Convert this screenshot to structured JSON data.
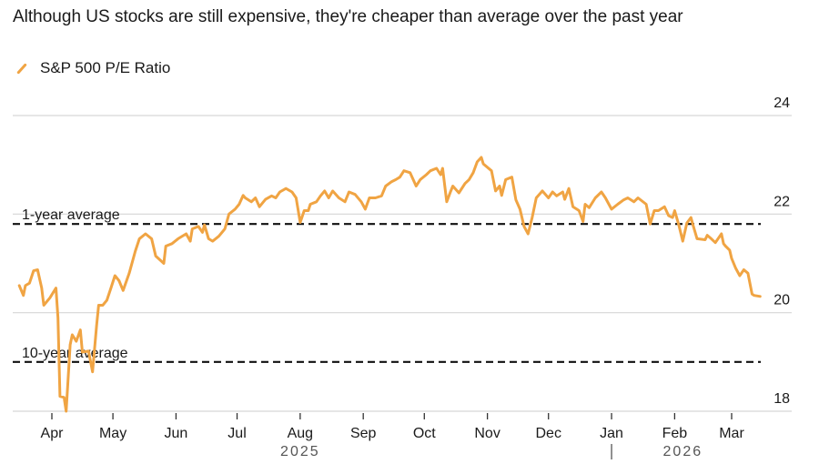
{
  "title": "Although US stocks are still expensive, they're cheaper than average over the past year",
  "chart_data": {
    "type": "line",
    "title": "Although US stocks are still expensive, they're cheaper than average over the past year",
    "xlabel": "",
    "ylabel": "",
    "x_unit": "days since 2025-04-01",
    "xlim": [
      -16,
      348
    ],
    "ylim": [
      17.7,
      24.5
    ],
    "y_ticks": [
      18,
      20,
      22,
      24
    ],
    "y_axis_side": "right",
    "grid": true,
    "legend": {
      "position": "top-left",
      "entries": [
        {
          "name": "S&P 500 P/E Ratio",
          "color": "#f0a443"
        }
      ]
    },
    "x_ticks": [
      {
        "day": 0,
        "label": "Apr"
      },
      {
        "day": 30,
        "label": "May"
      },
      {
        "day": 61,
        "label": "Jun"
      },
      {
        "day": 91,
        "label": "Jul"
      },
      {
        "day": 122,
        "label": "Aug"
      },
      {
        "day": 153,
        "label": "Sep"
      },
      {
        "day": 183,
        "label": "Oct"
      },
      {
        "day": 214,
        "label": "Nov"
      },
      {
        "day": 244,
        "label": "Dec"
      },
      {
        "day": 275,
        "label": "Jan"
      },
      {
        "day": 306,
        "label": "Feb"
      },
      {
        "day": 334,
        "label": "Mar"
      }
    ],
    "year_labels": [
      {
        "day": 122,
        "label": "2025"
      },
      {
        "day": 310,
        "label": "2026"
      }
    ],
    "year_divider_day": 275,
    "reference_lines": [
      {
        "name": "1-year average",
        "value": 21.8
      },
      {
        "name": "10-year average",
        "value": 19.0
      }
    ],
    "series": [
      {
        "name": "S&P 500 P/E Ratio",
        "color": "#f0a443",
        "points": [
          [
            -16,
            20.55
          ],
          [
            -14,
            20.35
          ],
          [
            -13,
            20.55
          ],
          [
            -11,
            20.6
          ],
          [
            -9,
            20.85
          ],
          [
            -7,
            20.87
          ],
          [
            -5,
            20.5
          ],
          [
            -4,
            20.15
          ],
          [
            -1,
            20.3
          ],
          [
            2,
            20.5
          ],
          [
            3,
            19.9
          ],
          [
            4,
            18.3
          ],
          [
            6,
            18.28
          ],
          [
            7,
            18.0
          ],
          [
            9,
            19.35
          ],
          [
            10,
            19.55
          ],
          [
            12,
            19.42
          ],
          [
            14,
            19.65
          ],
          [
            15,
            19.2
          ],
          [
            18,
            19.22
          ],
          [
            20,
            18.8
          ],
          [
            22,
            19.75
          ],
          [
            23,
            20.15
          ],
          [
            25,
            20.15
          ],
          [
            27,
            20.25
          ],
          [
            29,
            20.5
          ],
          [
            31,
            20.75
          ],
          [
            33,
            20.65
          ],
          [
            35,
            20.45
          ],
          [
            38,
            20.8
          ],
          [
            41,
            21.25
          ],
          [
            43,
            21.5
          ],
          [
            46,
            21.6
          ],
          [
            49,
            21.5
          ],
          [
            51,
            21.15
          ],
          [
            55,
            21.0
          ],
          [
            56,
            21.35
          ],
          [
            59,
            21.4
          ],
          [
            62,
            21.5
          ],
          [
            66,
            21.6
          ],
          [
            68,
            21.45
          ],
          [
            69,
            21.7
          ],
          [
            72,
            21.75
          ],
          [
            74,
            21.63
          ],
          [
            75,
            21.78
          ],
          [
            77,
            21.5
          ],
          [
            79,
            21.45
          ],
          [
            82,
            21.55
          ],
          [
            85,
            21.7
          ],
          [
            87,
            22.0
          ],
          [
            90,
            22.1
          ],
          [
            92,
            22.2
          ],
          [
            94,
            22.38
          ],
          [
            95,
            22.33
          ],
          [
            98,
            22.25
          ],
          [
            100,
            22.33
          ],
          [
            102,
            22.15
          ],
          [
            105,
            22.3
          ],
          [
            108,
            22.37
          ],
          [
            110,
            22.33
          ],
          [
            112,
            22.45
          ],
          [
            115,
            22.52
          ],
          [
            118,
            22.45
          ],
          [
            120,
            22.33
          ],
          [
            122,
            21.83
          ],
          [
            124,
            22.07
          ],
          [
            126,
            22.07
          ],
          [
            127,
            22.2
          ],
          [
            130,
            22.25
          ],
          [
            132,
            22.37
          ],
          [
            134,
            22.47
          ],
          [
            136,
            22.33
          ],
          [
            138,
            22.47
          ],
          [
            141,
            22.33
          ],
          [
            144,
            22.25
          ],
          [
            146,
            22.45
          ],
          [
            149,
            22.4
          ],
          [
            152,
            22.25
          ],
          [
            154,
            22.1
          ],
          [
            156,
            22.33
          ],
          [
            159,
            22.33
          ],
          [
            162,
            22.37
          ],
          [
            164,
            22.57
          ],
          [
            167,
            22.66
          ],
          [
            169,
            22.7
          ],
          [
            171,
            22.75
          ],
          [
            173,
            22.88
          ],
          [
            176,
            22.84
          ],
          [
            179,
            22.57
          ],
          [
            181,
            22.7
          ],
          [
            184,
            22.8
          ],
          [
            186,
            22.88
          ],
          [
            189,
            22.93
          ],
          [
            191,
            22.8
          ],
          [
            192,
            22.93
          ],
          [
            194,
            22.25
          ],
          [
            196,
            22.47
          ],
          [
            197,
            22.57
          ],
          [
            200,
            22.43
          ],
          [
            203,
            22.62
          ],
          [
            205,
            22.7
          ],
          [
            207,
            22.84
          ],
          [
            209,
            23.06
          ],
          [
            211,
            23.15
          ],
          [
            212,
            23.02
          ],
          [
            216,
            22.88
          ],
          [
            218,
            22.47
          ],
          [
            220,
            22.57
          ],
          [
            221,
            22.38
          ],
          [
            223,
            22.7
          ],
          [
            226,
            22.75
          ],
          [
            228,
            22.29
          ],
          [
            230,
            22.1
          ],
          [
            232,
            21.75
          ],
          [
            234,
            21.6
          ],
          [
            236,
            21.93
          ],
          [
            238,
            22.33
          ],
          [
            241,
            22.47
          ],
          [
            244,
            22.33
          ],
          [
            246,
            22.45
          ],
          [
            248,
            22.37
          ],
          [
            251,
            22.45
          ],
          [
            252,
            22.3
          ],
          [
            254,
            22.52
          ],
          [
            256,
            22.15
          ],
          [
            259,
            22.07
          ],
          [
            261,
            21.85
          ],
          [
            262,
            22.2
          ],
          [
            264,
            22.13
          ],
          [
            267,
            22.33
          ],
          [
            270,
            22.45
          ],
          [
            272,
            22.33
          ],
          [
            275,
            22.1
          ],
          [
            278,
            22.2
          ],
          [
            281,
            22.29
          ],
          [
            283,
            22.33
          ],
          [
            286,
            22.25
          ],
          [
            288,
            22.33
          ],
          [
            292,
            22.2
          ],
          [
            294,
            21.8
          ],
          [
            296,
            22.07
          ],
          [
            298,
            22.07
          ],
          [
            301,
            22.15
          ],
          [
            303,
            21.97
          ],
          [
            305,
            21.93
          ],
          [
            306,
            22.07
          ],
          [
            308,
            21.78
          ],
          [
            310,
            21.45
          ],
          [
            312,
            21.82
          ],
          [
            314,
            21.93
          ],
          [
            315,
            21.78
          ],
          [
            317,
            21.5
          ],
          [
            321,
            21.48
          ],
          [
            322,
            21.57
          ],
          [
            324,
            21.5
          ],
          [
            326,
            21.42
          ],
          [
            329,
            21.6
          ],
          [
            330,
            21.4
          ],
          [
            331,
            21.35
          ],
          [
            333,
            21.27
          ],
          [
            334,
            21.1
          ],
          [
            336,
            20.9
          ],
          [
            338,
            20.75
          ],
          [
            340,
            20.87
          ],
          [
            342,
            20.8
          ],
          [
            344,
            20.38
          ],
          [
            345,
            20.35
          ],
          [
            348,
            20.33
          ]
        ]
      }
    ]
  }
}
